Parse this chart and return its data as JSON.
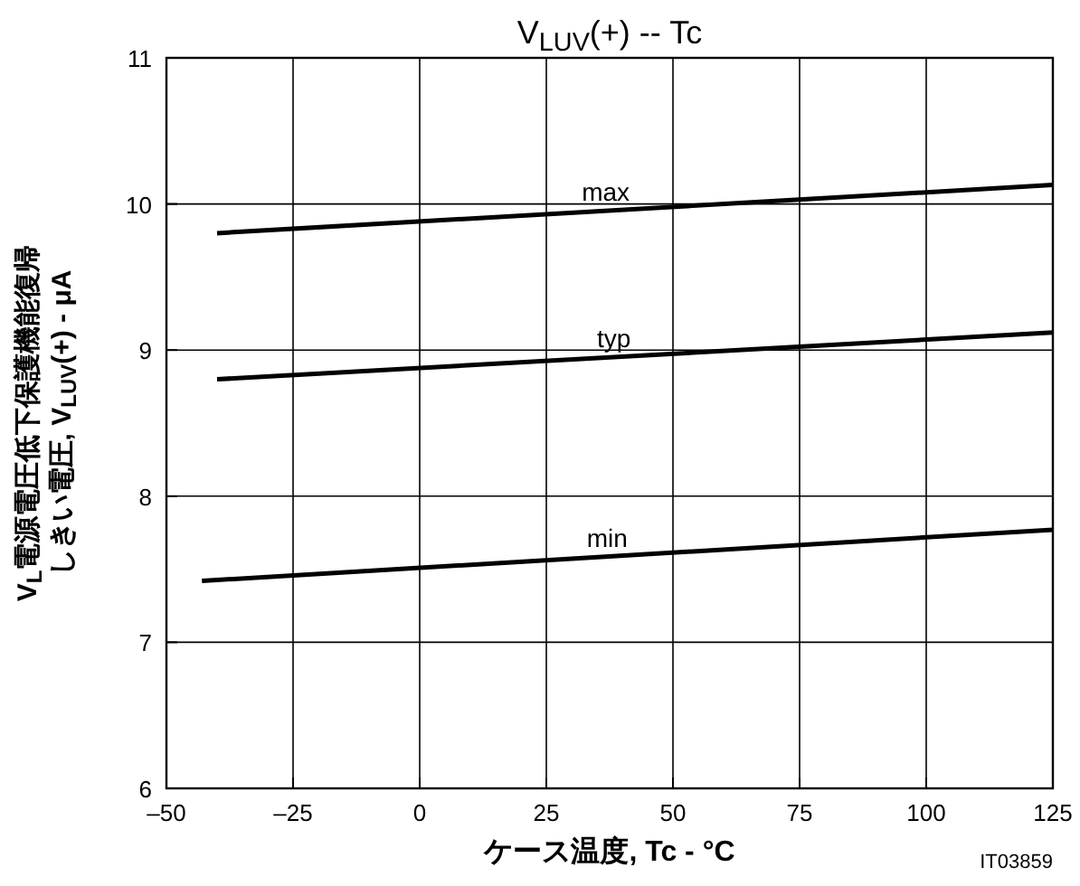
{
  "chart_data": {
    "type": "line",
    "title": "V$_{LUV}$(+)  --  Tc",
    "xlabel": "ケース温度, Tc - °C",
    "ylabel": "V$_{L}$電源電圧低下保護機能復帰しきい電圧, V$_{LUV}$(+) - μA",
    "xlim": [
      -50,
      125
    ],
    "xticks": [
      {
        "value": -50,
        "label": "–50"
      },
      {
        "value": -25,
        "label": "–25"
      },
      0,
      25,
      50,
      75,
      100,
      125
    ],
    "ylim": [
      6,
      11
    ],
    "yticks": [
      6,
      7,
      8,
      9,
      10,
      11
    ],
    "grid": true,
    "marker": "none",
    "line_style": "solid",
    "series": [
      {
        "color": "#000000",
        "x": [
          -40,
          125
        ],
        "values": [
          9.8,
          10.13
        ]
      },
      {
        "color": "#000000",
        "x": [
          -40,
          125
        ],
        "values": [
          8.8,
          9.12
        ]
      },
      {
        "color": "#000000",
        "x": [
          -43,
          125
        ],
        "values": [
          7.42,
          7.77
        ]
      }
    ],
    "annotations": [
      {
        "text": "max",
        "x": 32,
        "y": 9.97
      },
      {
        "text": "typ",
        "x": 35,
        "y": 8.97
      },
      {
        "text": "min",
        "x": 33,
        "y": 7.6
      },
      "IT03859"
    ]
  }
}
